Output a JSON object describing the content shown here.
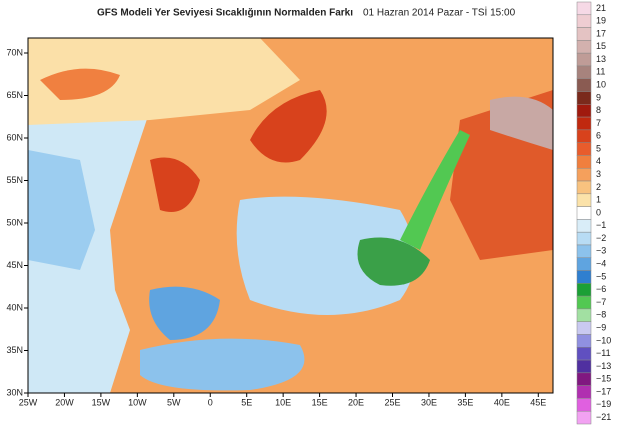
{
  "header": {
    "title": "GFS Modeli Yer Seviyesi Sıcaklığının Normalden Farkı",
    "date": "01 Hazran 2014 Pazar - TSİ 15:00"
  },
  "map": {
    "x_labels": [
      "25W",
      "20W",
      "15W",
      "10W",
      "5W",
      "0",
      "5E",
      "10E",
      "15E",
      "20E",
      "25E",
      "30E",
      "35E",
      "40E",
      "45E"
    ],
    "y_labels": [
      "70N",
      "65N",
      "60N",
      "55N",
      "50N",
      "45N",
      "40N",
      "35N",
      "30N"
    ]
  },
  "colorbar": {
    "entries": [
      {
        "label": "21",
        "color": "#f6d9e6"
      },
      {
        "label": "19",
        "color": "#efcdd2"
      },
      {
        "label": "17",
        "color": "#e4c3c3"
      },
      {
        "label": "15",
        "color": "#d3b1ae"
      },
      {
        "label": "13",
        "color": "#bf9c97"
      },
      {
        "label": "11",
        "color": "#a7837d"
      },
      {
        "label": "10",
        "color": "#8a5b52"
      },
      {
        "label": "9",
        "color": "#7a2a1c"
      },
      {
        "label": "8",
        "color": "#a01a0e"
      },
      {
        "label": "7",
        "color": "#c0290f"
      },
      {
        "label": "6",
        "color": "#d8421c"
      },
      {
        "label": "5",
        "color": "#e85c2c"
      },
      {
        "label": "4",
        "color": "#f07f3e"
      },
      {
        "label": "3",
        "color": "#f5a05c"
      },
      {
        "label": "2",
        "color": "#f8c27f"
      },
      {
        "label": "1",
        "color": "#fbe2a9"
      },
      {
        "label": "0",
        "color": "#ffffff"
      },
      {
        "label": "−1",
        "color": "#d9edf8"
      },
      {
        "label": "−2",
        "color": "#b8dcf4"
      },
      {
        "label": "−3",
        "color": "#8cc2ec"
      },
      {
        "label": "−4",
        "color": "#5fa4e0"
      },
      {
        "label": "−5",
        "color": "#2f7fd0"
      },
      {
        "label": "−6",
        "color": "#1ba035"
      },
      {
        "label": "−7",
        "color": "#52c852"
      },
      {
        "label": "−8",
        "color": "#a2e0a2"
      },
      {
        "label": "−9",
        "color": "#c9c9f0"
      },
      {
        "label": "−10",
        "color": "#9090e0"
      },
      {
        "label": "−11",
        "color": "#6050c0"
      },
      {
        "label": "−13",
        "color": "#5030a0"
      },
      {
        "label": "−15",
        "color": "#801880"
      },
      {
        "label": "−17",
        "color": "#b030b0"
      },
      {
        "label": "−19",
        "color": "#e060e0"
      },
      {
        "label": "−21",
        "color": "#f2a2f2"
      }
    ]
  }
}
